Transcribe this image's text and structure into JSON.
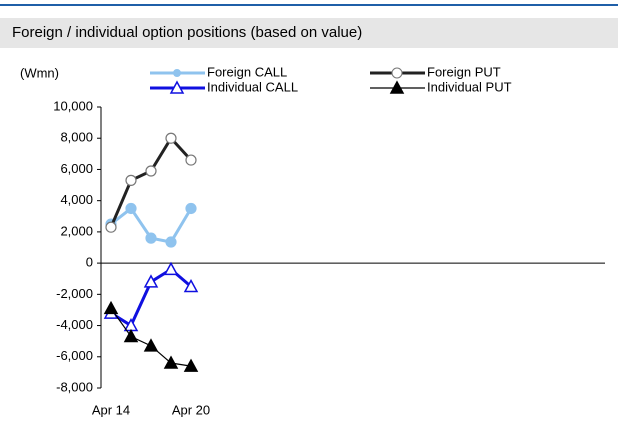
{
  "chart_data": {
    "type": "line",
    "title": "Foreign / individual option positions (based on value)",
    "ylabel": "(Wmn)",
    "categories": [
      "Apr 14",
      null,
      null,
      null,
      "Apr 20"
    ],
    "series": [
      {
        "name": "Foreign CALL",
        "color": "#8fc3ee",
        "marker": "circle",
        "filled": true,
        "width": 3,
        "values": [
          2500,
          3500,
          1600,
          1350,
          3500
        ]
      },
      {
        "name": "Foreign PUT",
        "color": "#222222",
        "marker": "circle",
        "filled": false,
        "width": 3,
        "values": [
          2300,
          5300,
          5900,
          8000,
          6600
        ]
      },
      {
        "name": "Individual CALL",
        "color": "#1010e0",
        "marker": "triangle",
        "filled": false,
        "width": 3,
        "values": [
          -3200,
          -4000,
          -1200,
          -400,
          -1500
        ]
      },
      {
        "name": "Individual PUT",
        "color": "#000000",
        "marker": "triangle",
        "filled": true,
        "width": 1.2,
        "values": [
          -2900,
          -4700,
          -5300,
          -6400,
          -6600
        ]
      }
    ],
    "ylim": [
      -8000,
      10000
    ],
    "yticks": [
      {
        "value": 10000,
        "label": "10,000"
      },
      {
        "value": 8000,
        "label": "8,000"
      },
      {
        "value": 6000,
        "label": "6,000"
      },
      {
        "value": 4000,
        "label": "4,000"
      },
      {
        "value": 2000,
        "label": "2,000"
      },
      0,
      {
        "value": -2000,
        "label": "-2,000"
      },
      {
        "value": -4000,
        "label": "-4,000"
      },
      {
        "value": -6000,
        "label": "-6,000"
      },
      {
        "value": -8000,
        "label": "-8,000"
      }
    ]
  }
}
